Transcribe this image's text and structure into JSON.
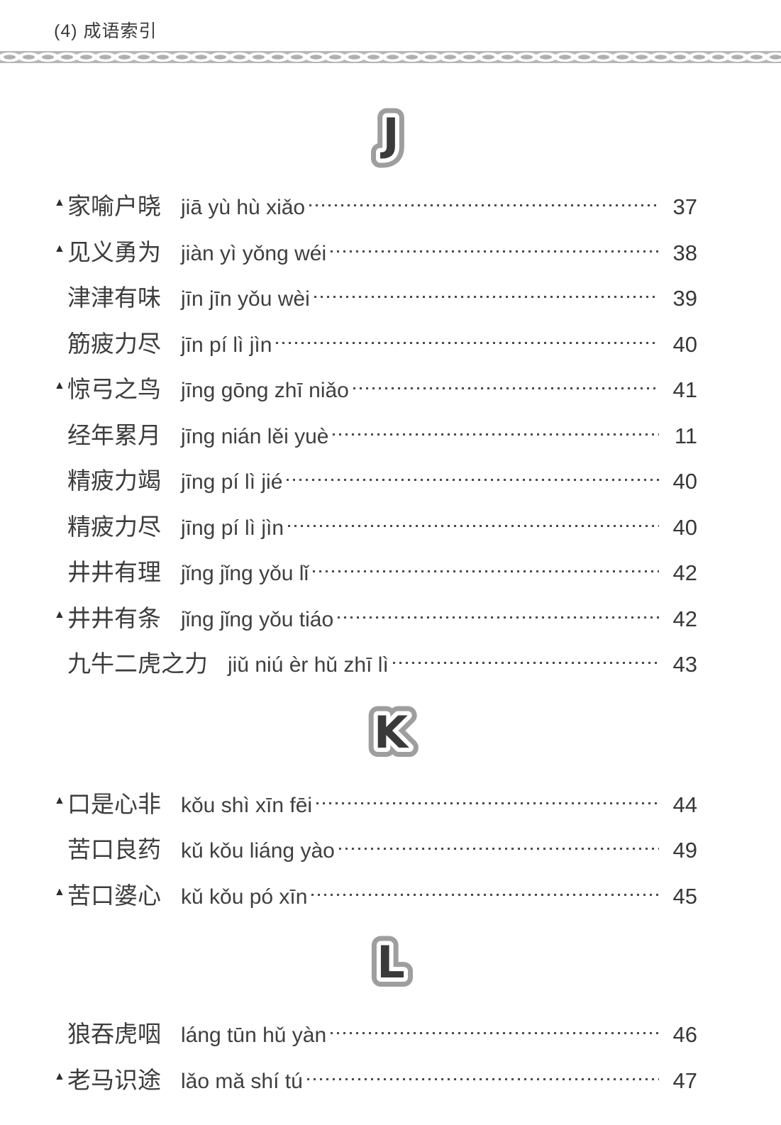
{
  "header": {
    "title": "(4) 成语索引"
  },
  "colors": {
    "page_bg": "#ffffff",
    "text": "#3d3d3d",
    "chain_band": "#b6b6b6",
    "chain_inner": "#b0b0b0",
    "letter_fill": "#3a3a3a",
    "letter_inner_ring": "#ffffff",
    "letter_outer_ring": "#9e9e9e",
    "dot_leader": "#4a4a4a"
  },
  "sections": [
    {
      "letter": "J",
      "entries": [
        {
          "marker": "▲",
          "hanzi": "家喻户晓",
          "pinyin": "jiā yù hù xiǎo",
          "page": "37"
        },
        {
          "marker": "▲",
          "hanzi": "见义勇为",
          "pinyin": "jiàn yì yǒng wéi",
          "page": "38"
        },
        {
          "marker": "",
          "hanzi": "津津有味",
          "pinyin": "jīn jīn yǒu wèi",
          "page": "39"
        },
        {
          "marker": "",
          "hanzi": "筋疲力尽",
          "pinyin": "jīn pí lì jìn",
          "page": "40"
        },
        {
          "marker": "▲",
          "hanzi": "惊弓之鸟",
          "pinyin": "jīng gōng zhī niǎo",
          "page": "41"
        },
        {
          "marker": "",
          "hanzi": "经年累月",
          "pinyin": "jīng nián lěi yuè",
          "page": "11"
        },
        {
          "marker": "",
          "hanzi": "精疲力竭",
          "pinyin": "jīng pí lì jié",
          "page": "40"
        },
        {
          "marker": "",
          "hanzi": "精疲力尽",
          "pinyin": "jīng pí lì jìn",
          "page": "40"
        },
        {
          "marker": "",
          "hanzi": "井井有理",
          "pinyin": "jǐng jǐng yǒu lǐ",
          "page": "42"
        },
        {
          "marker": "▲",
          "hanzi": "井井有条",
          "pinyin": "jǐng jǐng yǒu tiáo",
          "page": "42"
        },
        {
          "marker": "",
          "hanzi": "九牛二虎之力",
          "pinyin": "jiǔ niú èr hǔ zhī lì",
          "page": "43"
        }
      ]
    },
    {
      "letter": "K",
      "entries": [
        {
          "marker": "▲",
          "hanzi": "口是心非",
          "pinyin": "kǒu shì xīn fēi",
          "page": "44"
        },
        {
          "marker": "",
          "hanzi": "苦口良药",
          "pinyin": "kǔ kǒu liáng yào",
          "page": "49"
        },
        {
          "marker": "▲",
          "hanzi": "苦口婆心",
          "pinyin": "kǔ kǒu pó xīn",
          "page": "45"
        }
      ]
    },
    {
      "letter": "L",
      "entries": [
        {
          "marker": "",
          "hanzi": "狼吞虎咽",
          "pinyin": "láng tūn hǔ yàn",
          "page": "46"
        },
        {
          "marker": "▲",
          "hanzi": "老马识途",
          "pinyin": "lǎo mǎ shí tú",
          "page": "47"
        }
      ]
    }
  ]
}
